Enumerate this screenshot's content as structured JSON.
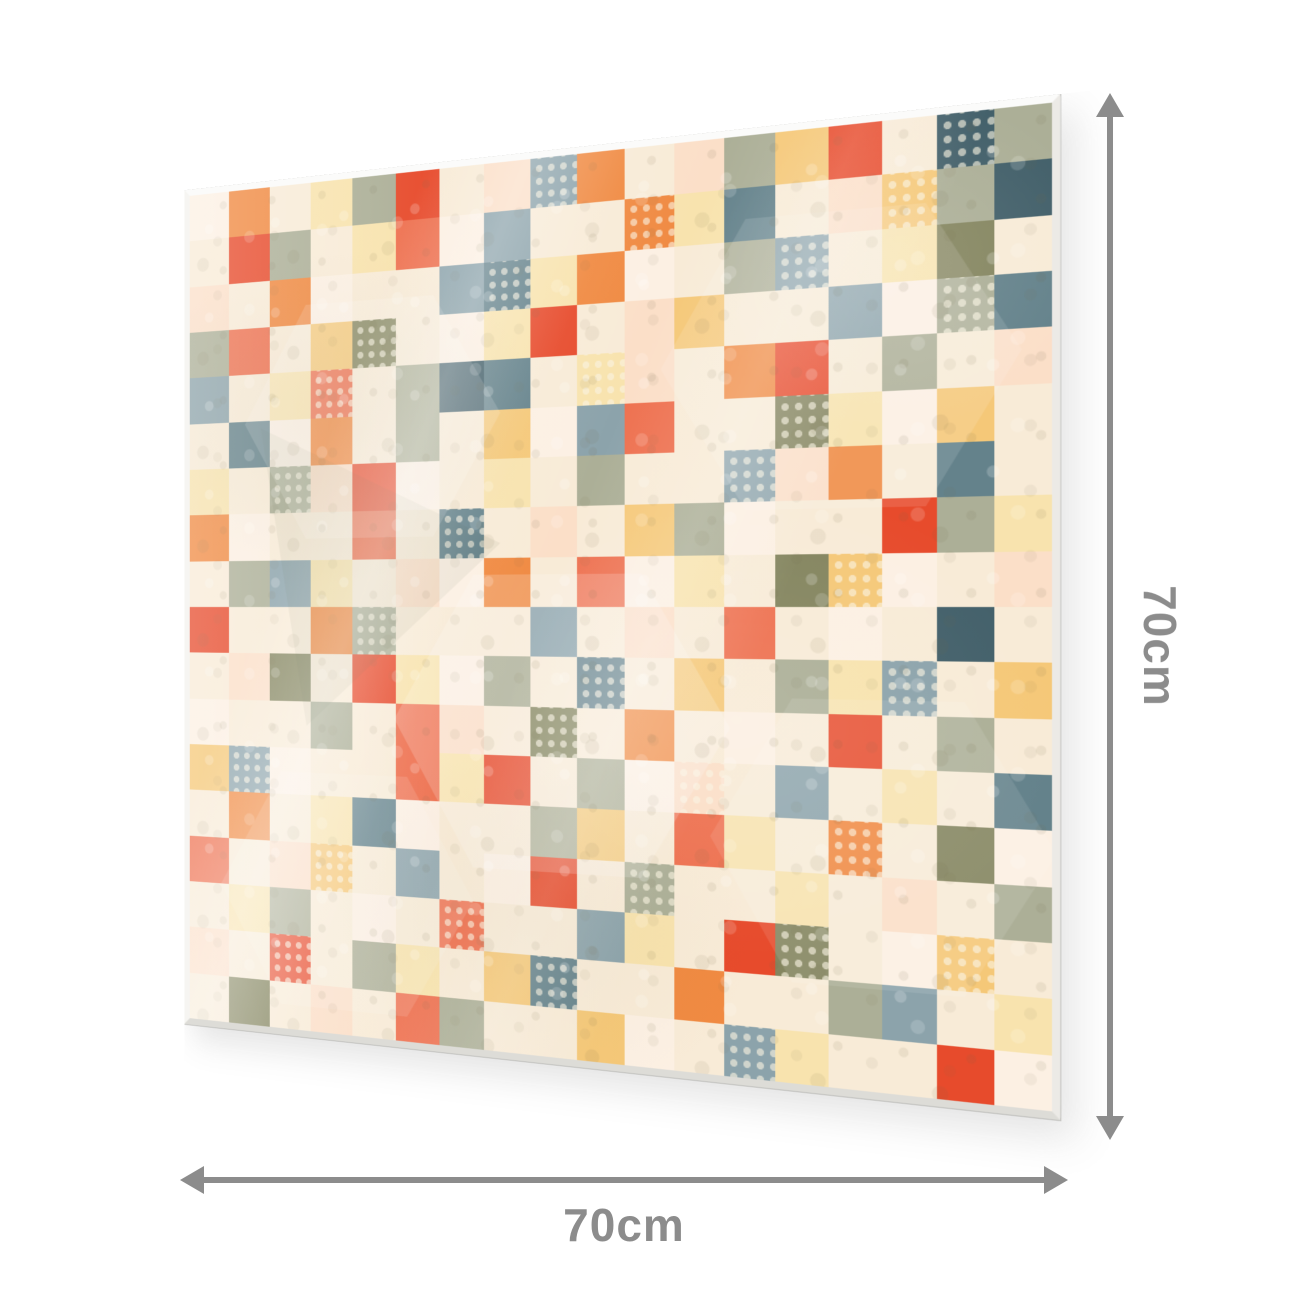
{
  "dimensions": {
    "width_label": "70cm",
    "height_label": "70cm",
    "arrow_color": "#8c8c8c",
    "label_color": "#8c8c8c"
  },
  "panel": {
    "frame_color": "#f4f3f0",
    "grid_columns": 18,
    "grid_rows": 18,
    "palette": {
      "c": {
        "color": "#F8EBD7",
        "dots": false
      },
      "i": {
        "color": "#FCF0E3",
        "dots": false
      },
      "p": {
        "color": "#FBDFC8",
        "dots": false
      },
      "P": {
        "color": "#FBDFC8",
        "dots": true
      },
      "y": {
        "color": "#F8E3AE",
        "dots": false
      },
      "Y": {
        "color": "#F8E3AE",
        "dots": true
      },
      "g": {
        "color": "#F5C878",
        "dots": false
      },
      "G": {
        "color": "#F5C878",
        "dots": true
      },
      "o": {
        "color": "#F08A42",
        "dots": false
      },
      "O": {
        "color": "#F08A42",
        "dots": true
      },
      "s": {
        "color": "#EE7150",
        "dots": false
      },
      "S": {
        "color": "#EE7150",
        "dots": true
      },
      "r": {
        "color": "#E74B2C",
        "dots": false
      },
      "R": {
        "color": "#E74B2C",
        "dots": true
      },
      "v": {
        "color": "#ACAF97",
        "dots": false
      },
      "V": {
        "color": "#ACAF97",
        "dots": true
      },
      "l": {
        "color": "#84855F",
        "dots": false
      },
      "L": {
        "color": "#84855F",
        "dots": true
      },
      "b": {
        "color": "#8CA3AB",
        "dots": false
      },
      "B": {
        "color": "#8CA3AB",
        "dots": true
      },
      "t": {
        "color": "#64828B",
        "dots": false
      },
      "T": {
        "color": "#64828B",
        "dots": true
      },
      "d": {
        "color": "#43606A",
        "dots": false
      },
      "D": {
        "color": "#43606A",
        "dots": true
      }
    },
    "grid": [
      "iocyvrcpBocpvgrcDv",
      "crvcysibccOytcpGvd",
      "pcoiccbTyoicvBcylc",
      "vscgLciyrcpgccbiVt",
      "bcyScvdtcYpcorcvcp",
      "ctiocvcgibsccLyigc",
      "ycVpricycvccBpoctc",
      "oiccscTcpcgviccrvy",
      "cvbycpiocsiyclGicp",
      "rccoVcccbcpcscicdc",
      "cplcryivcTcgcvyBcg",
      "iccvcspcLcocicrcvc",
      "gBiccsyrcviPcbcyct",
      "cocyticcvgcsycOcli",
      "scpGcbcircVccycpcv",
      "cyvcicSccbycrLciGc",
      "pcRcvycgTccoccvbcy",
      "clcpcsvccgicByccri"
    ]
  }
}
